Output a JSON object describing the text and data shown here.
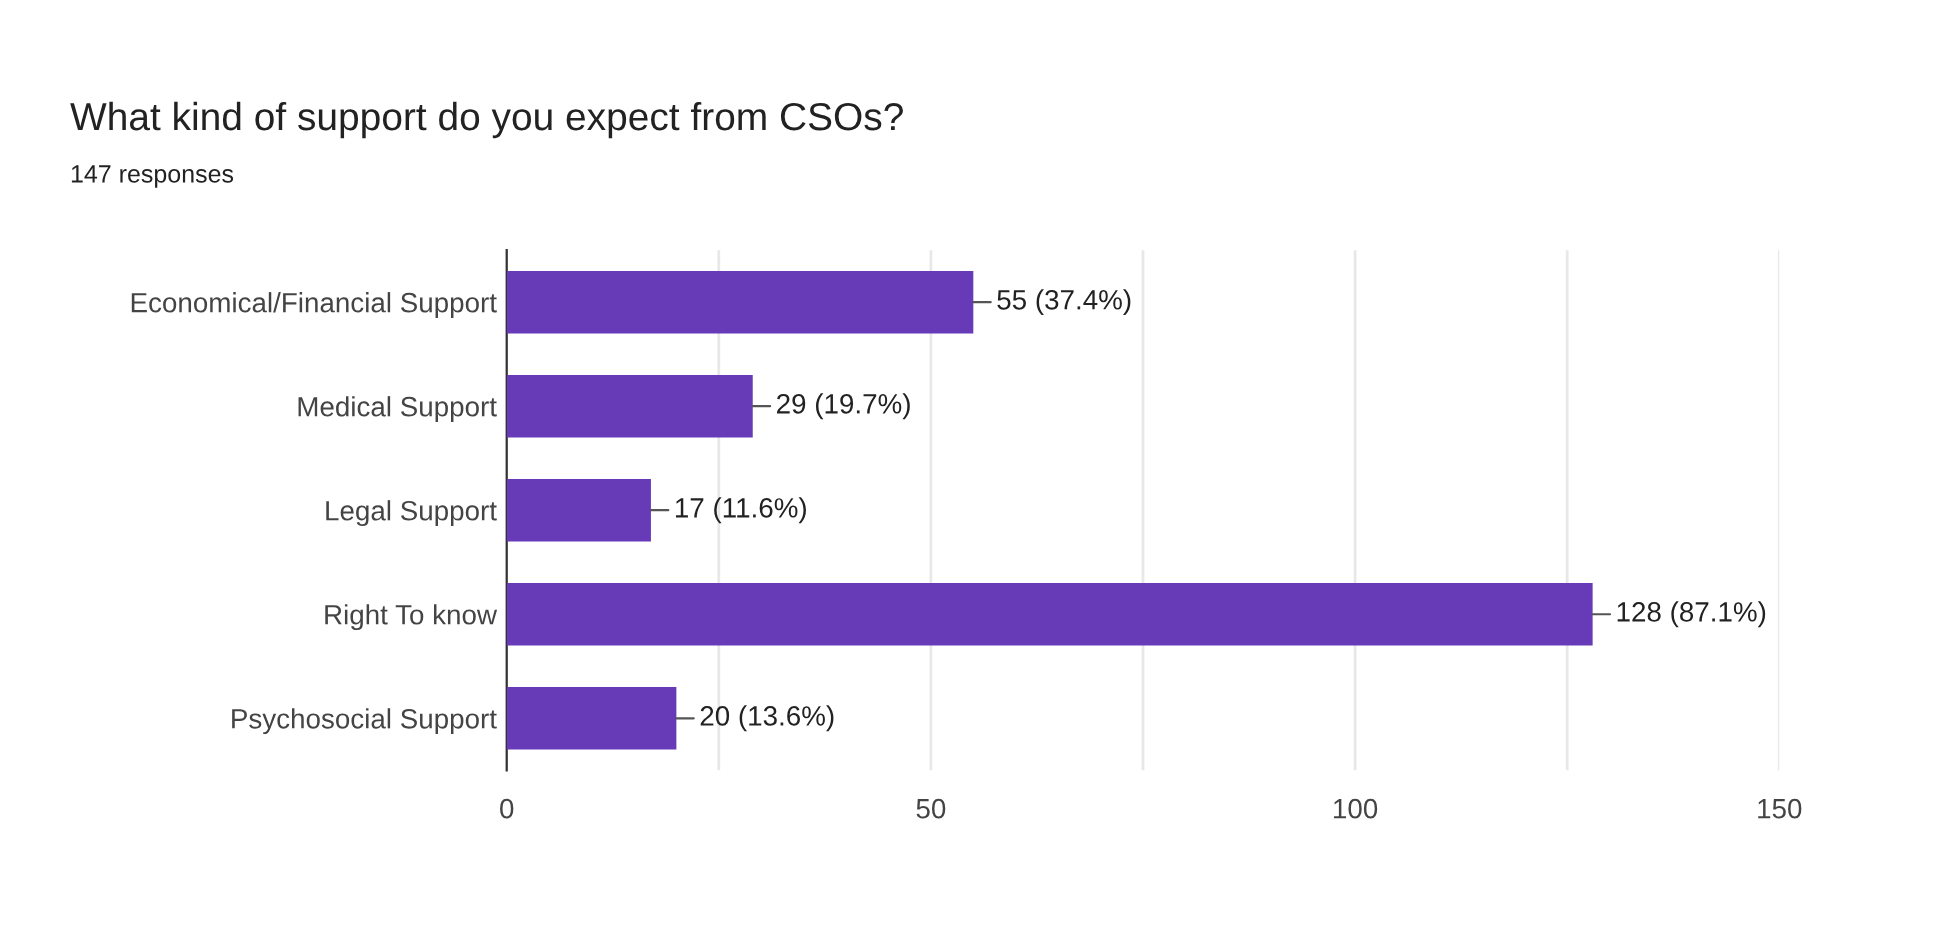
{
  "chart_data": {
    "type": "bar",
    "orientation": "horizontal",
    "title": "What kind of support do you expect from CSOs?",
    "subtitle": "147 responses",
    "categories": [
      "Economical/Financial Support",
      "Medical Support",
      "Legal Support",
      "Right To know",
      "Psychosocial Support"
    ],
    "values": [
      55,
      29,
      17,
      128,
      20
    ],
    "color": "#673ab7",
    "value_labels": [
      "55 (37.4%)",
      "29 (19.7%)",
      "17 (11.6%)",
      "128 (87.1%)",
      "20 (13.6%)"
    ],
    "xlim": [
      0,
      150
    ],
    "xticks": [
      0,
      {
        "value": 25,
        "label": null
      },
      50,
      {
        "value": 75,
        "label": null
      },
      100,
      {
        "value": 125,
        "label": null
      },
      150
    ],
    "grid": "x",
    "legend": false
  }
}
